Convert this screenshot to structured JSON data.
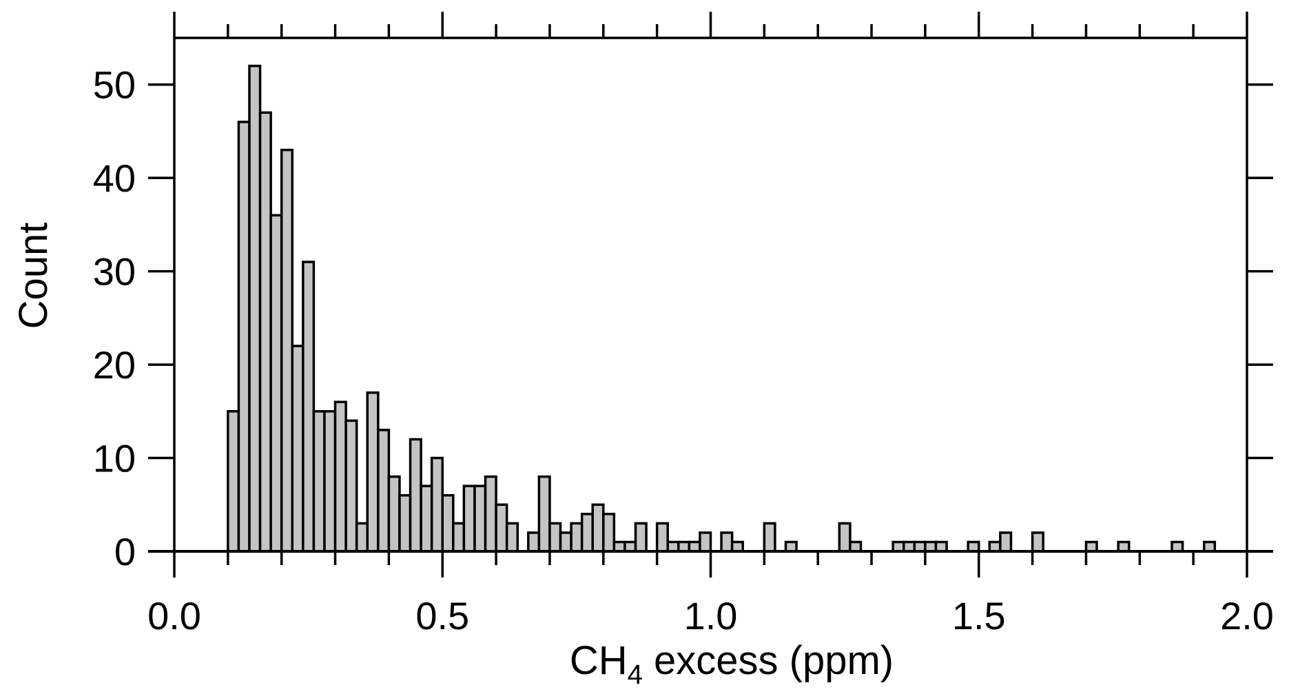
{
  "chart_data": {
    "type": "bar",
    "subtype": "histogram",
    "xlabel": "CH",
    "xlabel_subscript": "4",
    "xlabel_suffix": " excess (ppm)",
    "ylabel": "Count",
    "xlim": [
      0.0,
      2.0
    ],
    "ylim": [
      0,
      55
    ],
    "bin_width": 0.02,
    "x_ticks": [
      0.0,
      0.5,
      1.0,
      1.5,
      2.0
    ],
    "x_tick_labels": [
      "0.0",
      "0.5",
      "1.0",
      "1.5",
      "2.0"
    ],
    "x_minor_step": 0.1,
    "y_ticks": [
      0,
      10,
      20,
      30,
      40,
      50
    ],
    "y_tick_labels": [
      "0",
      "10",
      "20",
      "30",
      "40",
      "50"
    ],
    "grid": false,
    "legend": "none",
    "colors": {
      "bar_fill": "#c4c4c4",
      "bar_edge": "#000000",
      "axis": "#000000"
    },
    "bins": [
      {
        "x": 0.1,
        "count": 15
      },
      {
        "x": 0.12,
        "count": 46
      },
      {
        "x": 0.14,
        "count": 52
      },
      {
        "x": 0.16,
        "count": 47
      },
      {
        "x": 0.18,
        "count": 36
      },
      {
        "x": 0.2,
        "count": 43
      },
      {
        "x": 0.22,
        "count": 22
      },
      {
        "x": 0.24,
        "count": 31
      },
      {
        "x": 0.26,
        "count": 15
      },
      {
        "x": 0.28,
        "count": 15
      },
      {
        "x": 0.3,
        "count": 16
      },
      {
        "x": 0.32,
        "count": 14
      },
      {
        "x": 0.34,
        "count": 3
      },
      {
        "x": 0.36,
        "count": 17
      },
      {
        "x": 0.38,
        "count": 13
      },
      {
        "x": 0.4,
        "count": 8
      },
      {
        "x": 0.42,
        "count": 6
      },
      {
        "x": 0.44,
        "count": 12
      },
      {
        "x": 0.46,
        "count": 7
      },
      {
        "x": 0.48,
        "count": 10
      },
      {
        "x": 0.5,
        "count": 6
      },
      {
        "x": 0.52,
        "count": 3
      },
      {
        "x": 0.54,
        "count": 7
      },
      {
        "x": 0.56,
        "count": 7
      },
      {
        "x": 0.58,
        "count": 8
      },
      {
        "x": 0.6,
        "count": 5
      },
      {
        "x": 0.62,
        "count": 3
      },
      {
        "x": 0.66,
        "count": 2
      },
      {
        "x": 0.68,
        "count": 8
      },
      {
        "x": 0.7,
        "count": 3
      },
      {
        "x": 0.72,
        "count": 2
      },
      {
        "x": 0.74,
        "count": 3
      },
      {
        "x": 0.76,
        "count": 4
      },
      {
        "x": 0.78,
        "count": 5
      },
      {
        "x": 0.8,
        "count": 4
      },
      {
        "x": 0.82,
        "count": 1
      },
      {
        "x": 0.84,
        "count": 1
      },
      {
        "x": 0.86,
        "count": 3
      },
      {
        "x": 0.9,
        "count": 3
      },
      {
        "x": 0.92,
        "count": 1
      },
      {
        "x": 0.94,
        "count": 1
      },
      {
        "x": 0.96,
        "count": 1
      },
      {
        "x": 0.98,
        "count": 2
      },
      {
        "x": 1.02,
        "count": 2
      },
      {
        "x": 1.04,
        "count": 1
      },
      {
        "x": 1.1,
        "count": 3
      },
      {
        "x": 1.14,
        "count": 1
      },
      {
        "x": 1.24,
        "count": 3
      },
      {
        "x": 1.26,
        "count": 1
      },
      {
        "x": 1.34,
        "count": 1
      },
      {
        "x": 1.36,
        "count": 1
      },
      {
        "x": 1.38,
        "count": 1
      },
      {
        "x": 1.4,
        "count": 1
      },
      {
        "x": 1.42,
        "count": 1
      },
      {
        "x": 1.48,
        "count": 1
      },
      {
        "x": 1.52,
        "count": 1
      },
      {
        "x": 1.54,
        "count": 2
      },
      {
        "x": 1.6,
        "count": 2
      },
      {
        "x": 1.7,
        "count": 1
      },
      {
        "x": 1.76,
        "count": 1
      },
      {
        "x": 1.86,
        "count": 1
      },
      {
        "x": 1.92,
        "count": 1
      }
    ]
  }
}
